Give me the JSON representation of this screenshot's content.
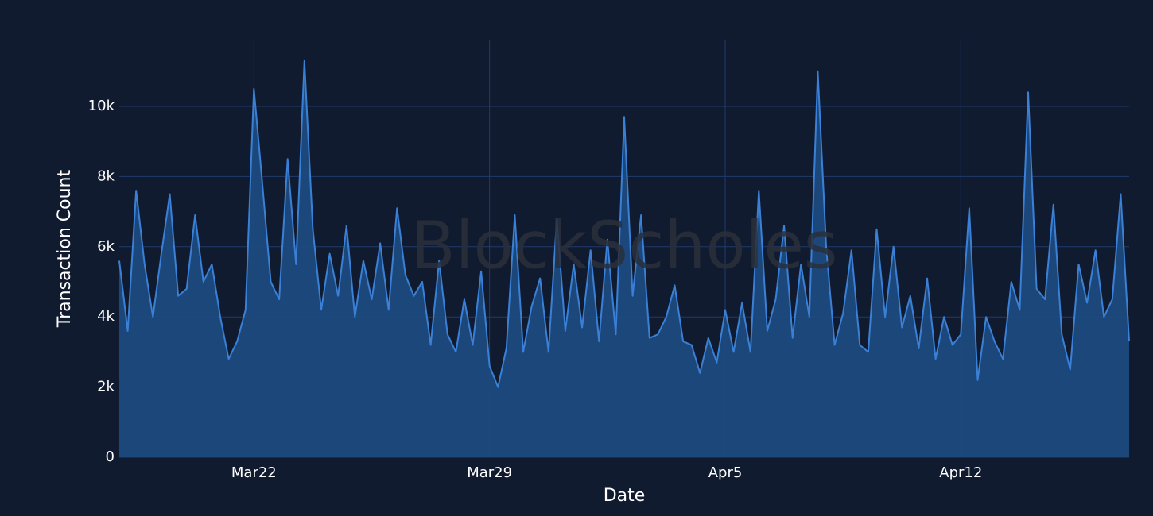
{
  "chart_data": {
    "type": "area",
    "watermark": "BlockScholes",
    "x_label": "Date",
    "y_label": "Transaction Count",
    "xlim": [
      18,
      48
    ],
    "xticks": [
      {
        "value": 22,
        "label": "Mar22"
      },
      {
        "value": 29,
        "label": "Mar29"
      },
      {
        "value": 36,
        "label": "Apr5"
      },
      {
        "value": 43,
        "label": "Apr12"
      }
    ],
    "ylim": [
      0,
      11900
    ],
    "yticks": [
      0,
      {
        "value": 2000,
        "label": "2k"
      },
      {
        "value": 4000,
        "label": "4k"
      },
      {
        "value": 6000,
        "label": "6k"
      },
      {
        "value": 8000,
        "label": "8k"
      },
      {
        "value": 10000,
        "label": "10k"
      }
    ],
    "grid": true,
    "line_color": "#3a80d6",
    "fill_color": "#1e4a80",
    "x": [
      18,
      18.25,
      18.5,
      18.75,
      19,
      19.25,
      19.5,
      19.75,
      20,
      20.25,
      20.5,
      20.75,
      21,
      21.25,
      21.5,
      21.75,
      22,
      22.25,
      22.5,
      22.75,
      23,
      23.25,
      23.5,
      23.75,
      24,
      24.25,
      24.5,
      24.75,
      25,
      25.25,
      25.5,
      25.75,
      26,
      26.25,
      26.5,
      26.75,
      27,
      27.25,
      27.5,
      27.75,
      28,
      28.25,
      28.5,
      28.75,
      29,
      29.25,
      29.5,
      29.75,
      30,
      30.25,
      30.5,
      30.75,
      31,
      31.25,
      31.5,
      31.75,
      32,
      32.25,
      32.5,
      32.75,
      33,
      33.25,
      33.5,
      33.75,
      34,
      34.25,
      34.5,
      34.75,
      35,
      35.25,
      35.5,
      35.75,
      36,
      36.25,
      36.5,
      36.75,
      37,
      37.25,
      37.5,
      37.75,
      38,
      38.25,
      38.5,
      38.75,
      39,
      39.25,
      39.5,
      39.75,
      40,
      40.25,
      40.5,
      40.75,
      41,
      41.25,
      41.5,
      41.75,
      42,
      42.25,
      42.5,
      42.75,
      43,
      43.25,
      43.5,
      43.75,
      44,
      44.25,
      44.5,
      44.75,
      45,
      45.25,
      45.5,
      45.75,
      46,
      46.25,
      46.5,
      46.75,
      47,
      47.25,
      47.5,
      47.75,
      48
    ],
    "values": [
      5600,
      3600,
      7600,
      5500,
      4000,
      5800,
      7500,
      4600,
      4800,
      6900,
      5000,
      5500,
      4000,
      2800,
      3300,
      4200,
      10500,
      7800,
      5000,
      4500,
      8500,
      5500,
      11300,
      6500,
      4200,
      5800,
      4600,
      6600,
      4000,
      5600,
      4500,
      6100,
      4200,
      7100,
      5200,
      4600,
      5000,
      3200,
      5600,
      3500,
      3000,
      4500,
      3200,
      5300,
      2600,
      2000,
      3100,
      6900,
      3000,
      4300,
      5100,
      3000,
      6800,
      3600,
      5500,
      3700,
      5900,
      3300,
      6200,
      3500,
      9700,
      4600,
      6900,
      3400,
      3500,
      4000,
      4900,
      3300,
      3200,
      2400,
      3400,
      2700,
      4200,
      3000,
      4400,
      3000,
      7600,
      3600,
      4500,
      6600,
      3400,
      5500,
      4000,
      11000,
      6000,
      3200,
      4100,
      5900,
      3200,
      3000,
      6500,
      4000,
      6000,
      3700,
      4600,
      3100,
      5100,
      2800,
      4000,
      3200,
      3500,
      7100,
      2200,
      4000,
      3300,
      2800,
      5000,
      4200,
      10400,
      4800,
      4500,
      7200,
      3500,
      2500,
      5500,
      4400,
      5900,
      4000,
      4500,
      7500,
      3300
    ]
  }
}
